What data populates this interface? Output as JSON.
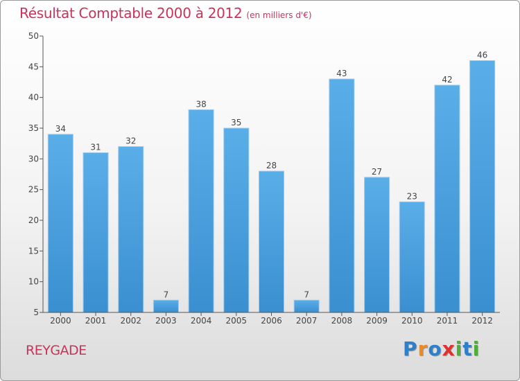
{
  "chart_data": {
    "type": "bar",
    "title": "Résultat Comptable 2000 à 2012",
    "subtitle": "(en milliers d'€)",
    "categories": [
      "2000",
      "2001",
      "2002",
      "2003",
      "2004",
      "2005",
      "2006",
      "2007",
      "2008",
      "2009",
      "2010",
      "2011",
      "2012"
    ],
    "values": [
      34,
      31,
      32,
      7,
      38,
      35,
      28,
      7,
      43,
      27,
      23,
      42,
      46
    ],
    "ylim": [
      5,
      50
    ],
    "yticks": [
      5,
      10,
      15,
      20,
      25,
      30,
      35,
      40,
      45,
      50
    ],
    "grid": false,
    "bar_color": "#3a8fd0"
  },
  "commune": "REYGADE",
  "brand": {
    "name": "Proxiti",
    "letters": [
      "P",
      "r",
      "o",
      "x",
      "i",
      "t",
      "i"
    ],
    "colors": [
      "#2f80c8",
      "#f08a1c",
      "#2f80c8",
      "#e03030",
      "#4fae3a",
      "#2f80c8",
      "#4fae3a"
    ]
  }
}
